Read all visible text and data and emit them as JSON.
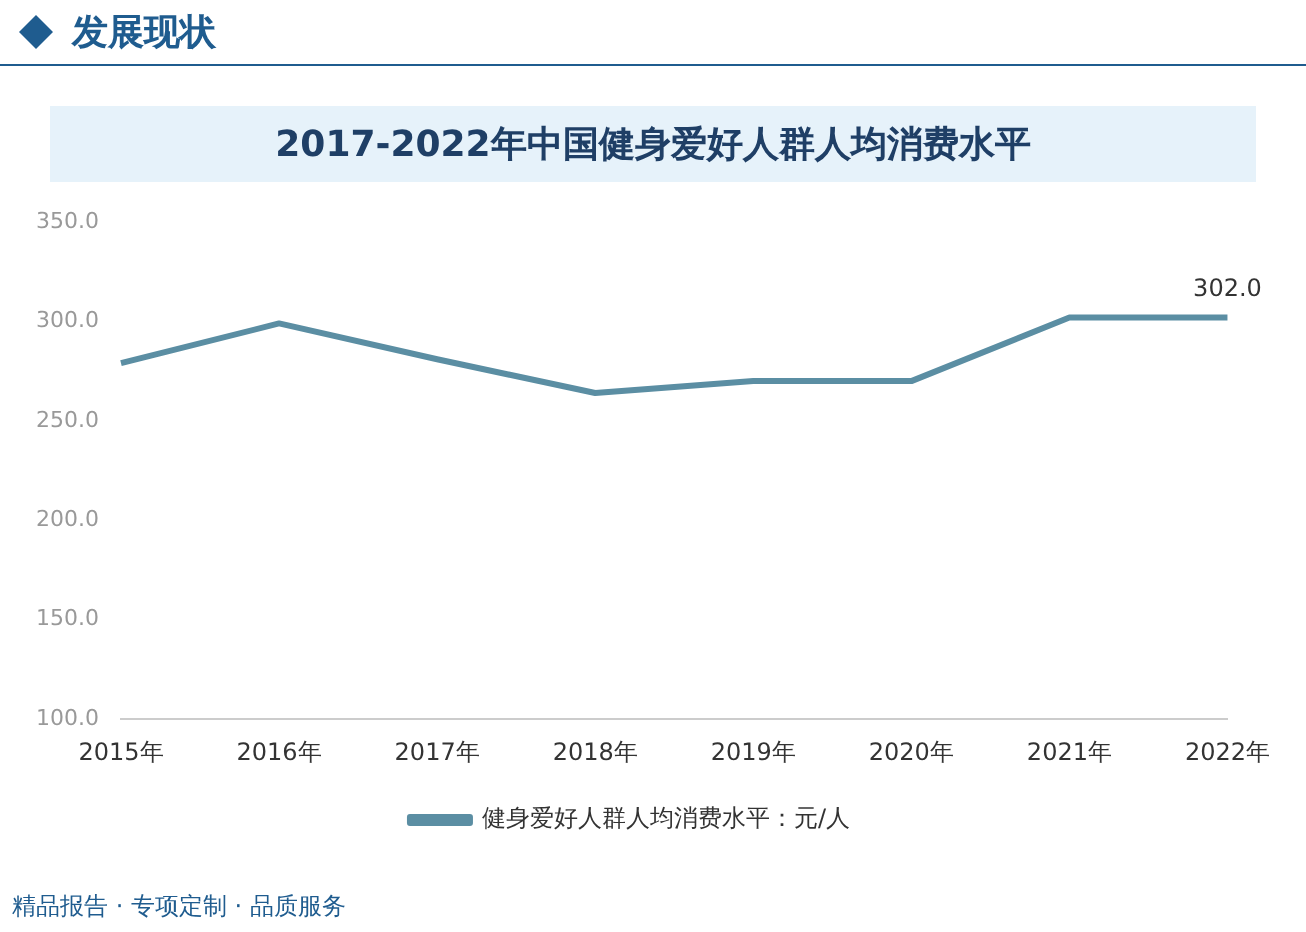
{
  "chart_data": {
    "type": "line",
    "title": "2017-2022年中国健身爱好人群人均消费水平",
    "annotations": [
      "发展现状",
      "精品报告 · 专项定制 · 品质服务"
    ],
    "categories": [
      "2015年",
      "2016年",
      "2017年",
      "2018年",
      "2019年",
      "2020年",
      "2021年",
      "2022年"
    ],
    "series": [
      {
        "name": "健身爱好人群人均消费水平：元/人",
        "color": "#5b8ea3",
        "values": [
          279,
          299,
          281,
          264,
          270,
          270,
          302,
          302
        ],
        "value_labels": [
          null,
          null,
          null,
          null,
          null,
          null,
          null,
          "302.0"
        ]
      }
    ],
    "ylim": [
      100,
      350
    ],
    "yticks": [
      {
        "value": 100,
        "label": "100.0"
      },
      {
        "value": 150,
        "label": "150.0"
      },
      {
        "value": 200,
        "label": "200.0"
      },
      {
        "value": 250,
        "label": "250.0"
      },
      {
        "value": 300,
        "label": "300.0"
      },
      {
        "value": 350,
        "label": "350.0"
      }
    ],
    "grid": false,
    "legend": "bottom",
    "marker": "none",
    "line_style": "solid"
  }
}
